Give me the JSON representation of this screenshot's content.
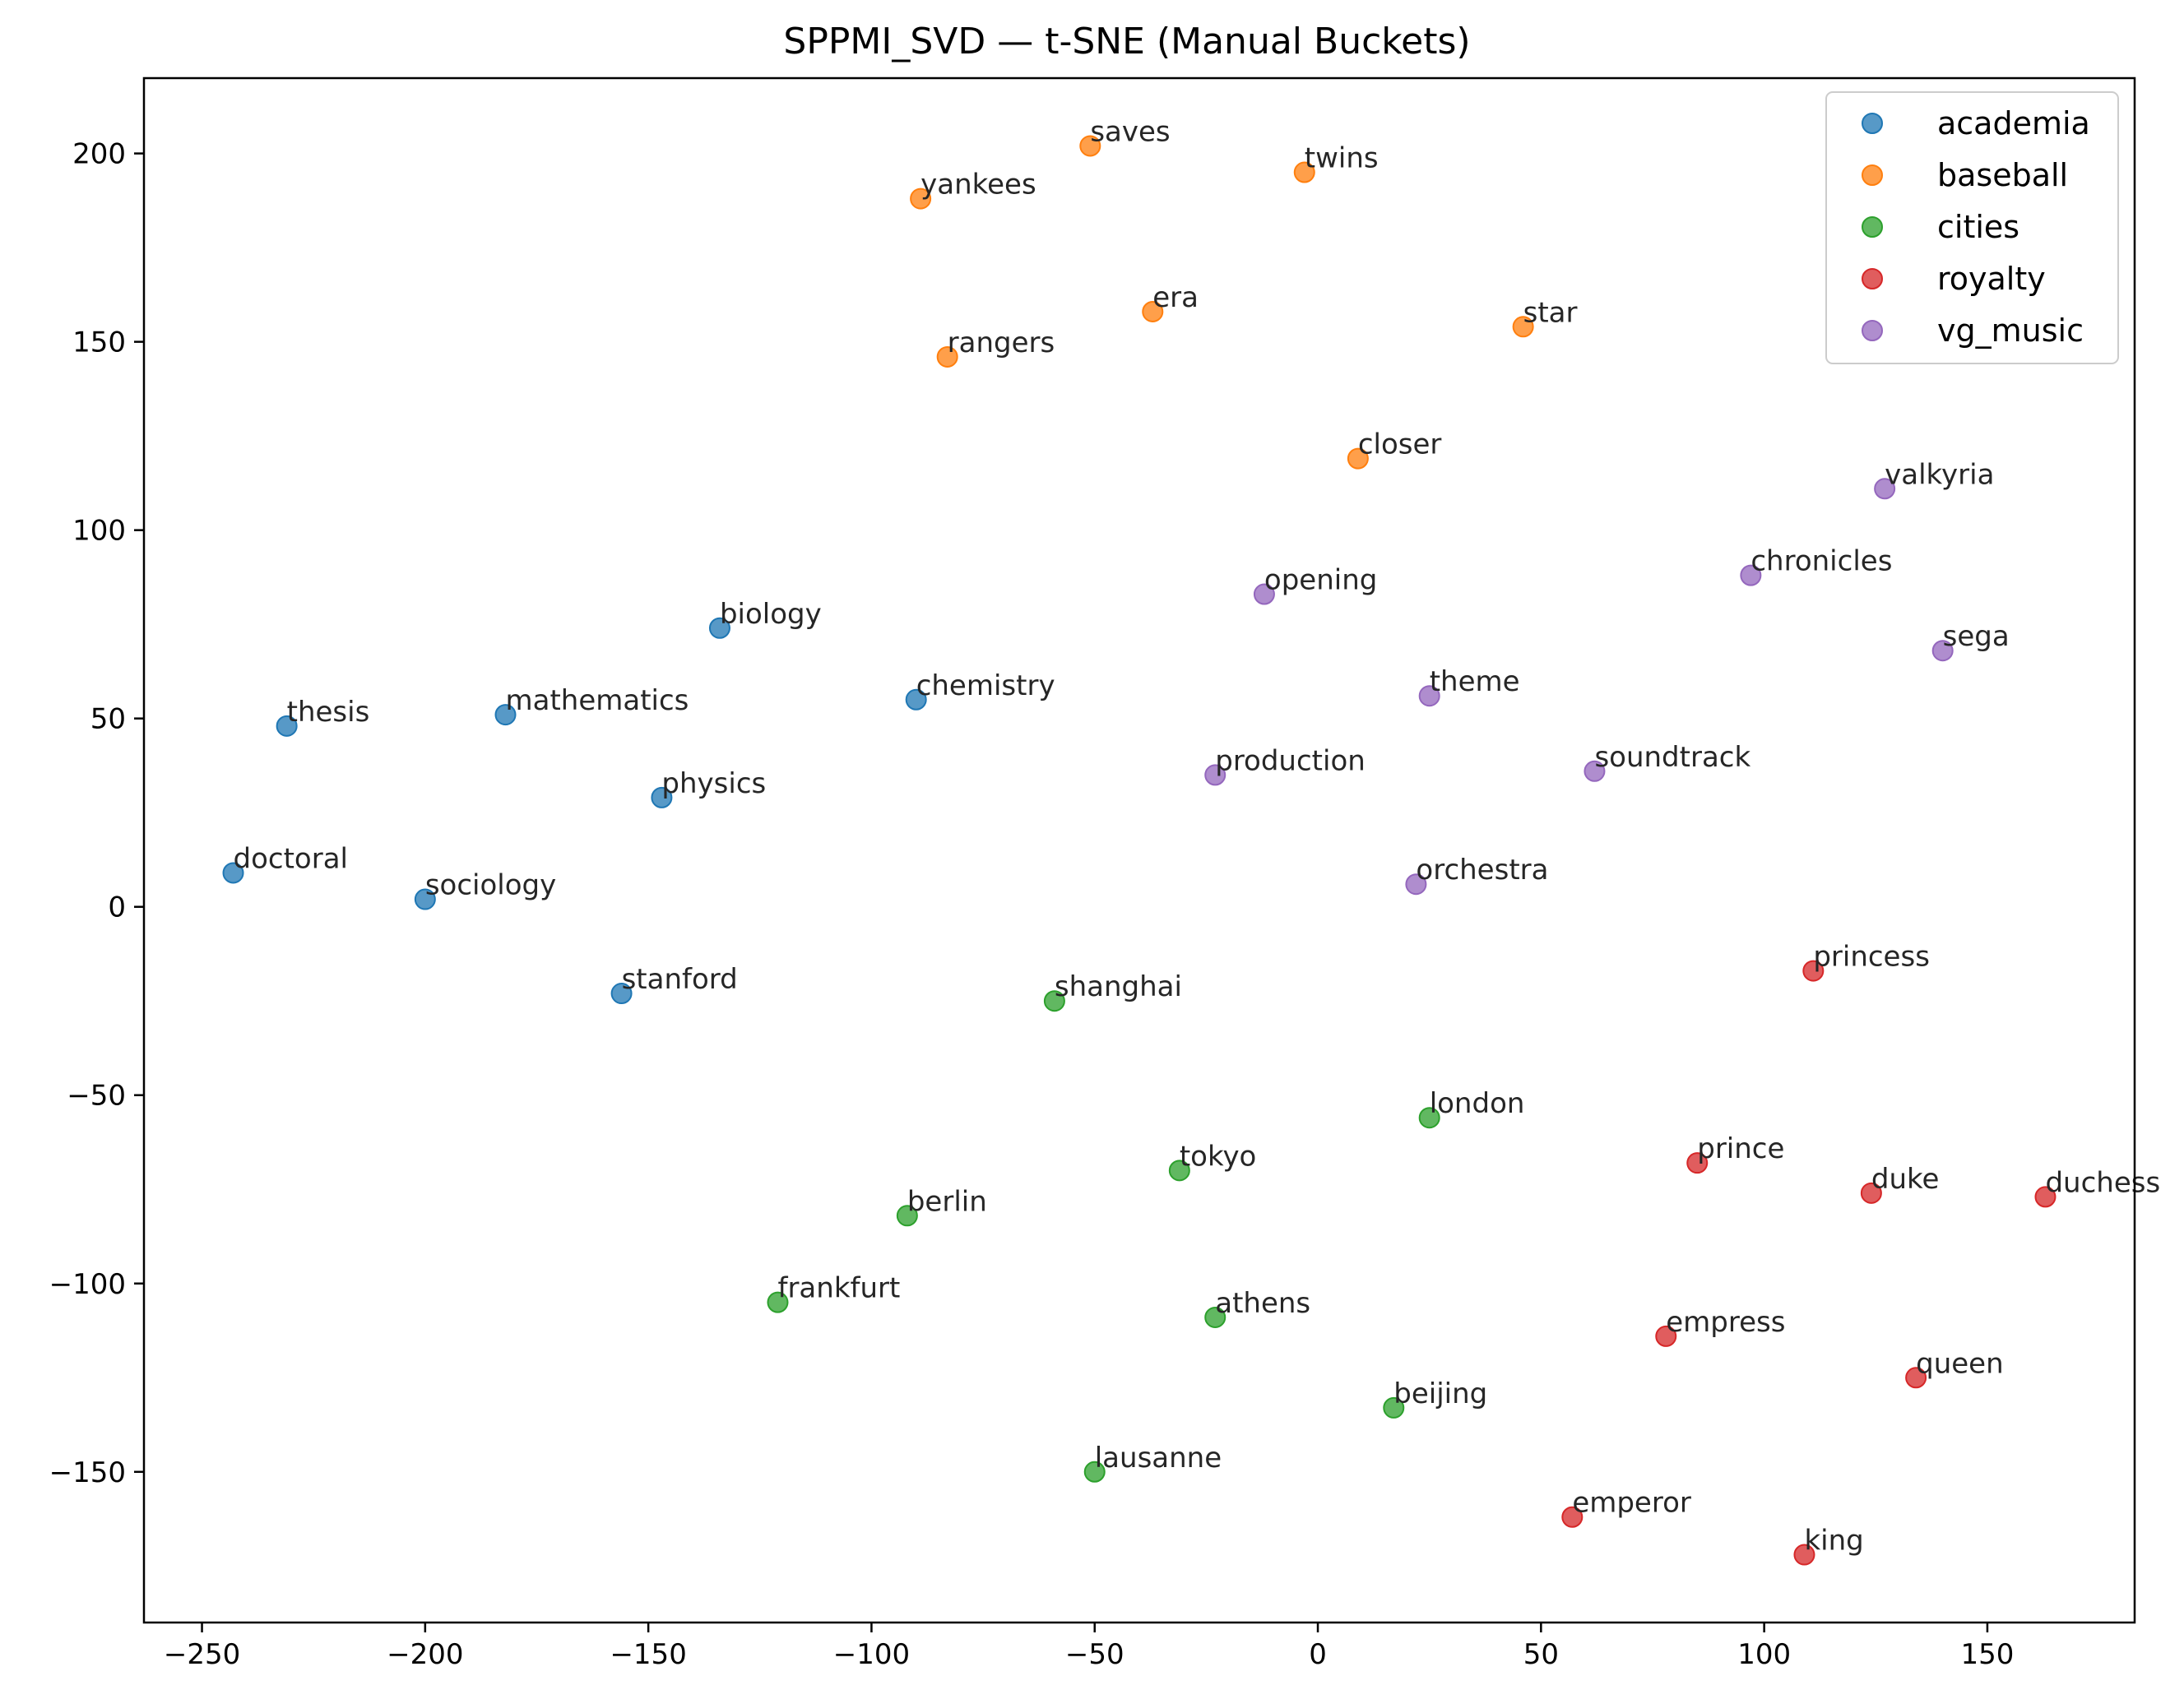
{
  "chart_data": {
    "type": "scatter",
    "title": "SPPMI_SVD — t-SNE (Manual Buckets)",
    "xlabel": "",
    "ylabel": "",
    "xlim": [
      -263,
      183
    ],
    "ylim": [
      -190,
      220
    ],
    "xticks": [
      -250,
      -200,
      -150,
      -100,
      -50,
      0,
      50,
      100,
      150
    ],
    "xtick_labels": [
      "−250",
      "−200",
      "−150",
      "−100",
      "−50",
      "0",
      "50",
      "100",
      "150"
    ],
    "yticks": [
      200,
      150,
      100,
      50,
      0,
      -50,
      -100,
      -150
    ],
    "ytick_labels": [
      "200",
      "150",
      "100",
      "50",
      "0",
      "−50",
      "−100",
      "−150"
    ],
    "grid": false,
    "legend_position": "top-right",
    "series": [
      {
        "name": "academia",
        "color": "#1f77b4",
        "points": [
          {
            "label": "biology",
            "x": -134,
            "y": 74
          },
          {
            "label": "chemistry",
            "x": -90,
            "y": 55
          },
          {
            "label": "mathematics",
            "x": -182,
            "y": 51
          },
          {
            "label": "thesis",
            "x": -231,
            "y": 48
          },
          {
            "label": "physics",
            "x": -147,
            "y": 29
          },
          {
            "label": "doctoral",
            "x": -243,
            "y": 9
          },
          {
            "label": "sociology",
            "x": -200,
            "y": 2
          },
          {
            "label": "stanford",
            "x": -156,
            "y": -23
          }
        ]
      },
      {
        "name": "baseball",
        "color": "#ff7f0e",
        "points": [
          {
            "label": "saves",
            "x": -51,
            "y": 202
          },
          {
            "label": "twins",
            "x": -3,
            "y": 195
          },
          {
            "label": "yankees",
            "x": -89,
            "y": 188
          },
          {
            "label": "era",
            "x": -37,
            "y": 158
          },
          {
            "label": "star",
            "x": 46,
            "y": 154
          },
          {
            "label": "rangers",
            "x": -83,
            "y": 146
          },
          {
            "label": "closer",
            "x": 9,
            "y": 119
          }
        ]
      },
      {
        "name": "cities",
        "color": "#2ca02c",
        "points": [
          {
            "label": "shanghai",
            "x": -59,
            "y": -25
          },
          {
            "label": "london",
            "x": 25,
            "y": -56
          },
          {
            "label": "tokyo",
            "x": -31,
            "y": -70
          },
          {
            "label": "berlin",
            "x": -92,
            "y": -82
          },
          {
            "label": "frankfurt",
            "x": -121,
            "y": -105
          },
          {
            "label": "athens",
            "x": -23,
            "y": -109
          },
          {
            "label": "beijing",
            "x": 17,
            "y": -133
          },
          {
            "label": "lausanne",
            "x": -50,
            "y": -150
          }
        ]
      },
      {
        "name": "royalty",
        "color": "#d62728",
        "points": [
          {
            "label": "princess",
            "x": 111,
            "y": -17
          },
          {
            "label": "prince",
            "x": 85,
            "y": -68
          },
          {
            "label": "duke",
            "x": 124,
            "y": -76
          },
          {
            "label": "duchess",
            "x": 163,
            "y": -77
          },
          {
            "label": "empress",
            "x": 78,
            "y": -114
          },
          {
            "label": "queen",
            "x": 134,
            "y": -125
          },
          {
            "label": "emperor",
            "x": 57,
            "y": -162
          },
          {
            "label": "king",
            "x": 109,
            "y": -172
          }
        ]
      },
      {
        "name": "vg_music",
        "color": "#9467bd",
        "points": [
          {
            "label": "valkyria",
            "x": 127,
            "y": 111
          },
          {
            "label": "chronicles",
            "x": 97,
            "y": 88
          },
          {
            "label": "opening",
            "x": -12,
            "y": 83
          },
          {
            "label": "sega",
            "x": 140,
            "y": 68
          },
          {
            "label": "theme",
            "x": 25,
            "y": 56
          },
          {
            "label": "soundtrack",
            "x": 62,
            "y": 36
          },
          {
            "label": "production",
            "x": -23,
            "y": 35
          },
          {
            "label": "orchestra",
            "x": 22,
            "y": 6
          }
        ]
      }
    ]
  }
}
